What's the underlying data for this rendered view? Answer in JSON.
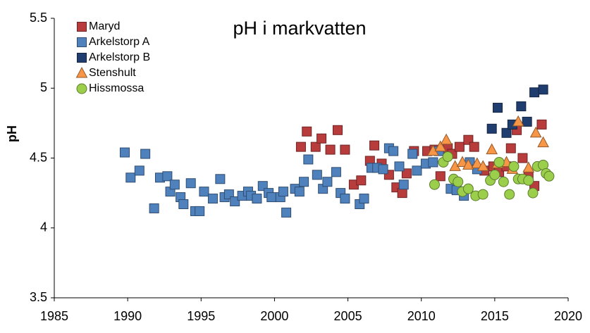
{
  "chart_data": {
    "type": "scatter",
    "title": "pH i markvatten",
    "y_label": "pH",
    "xlim": [
      1985,
      2020
    ],
    "xticks": [
      1985,
      1990,
      1995,
      2000,
      2005,
      2010,
      2015,
      2020
    ],
    "ylim": [
      3.5,
      5.5
    ],
    "yticks": [
      3.5,
      4,
      4.5,
      5,
      5.5
    ],
    "grid": false,
    "legend": "top-left",
    "series": [
      {
        "name": "Maryd",
        "color": "#b83c3c",
        "marker": "square",
        "x": [
          2001.8,
          2002.2,
          2002.8,
          2003.2,
          2003.8,
          2004.3,
          2004.8,
          2005.4,
          2005.9,
          2006.5,
          2006.8,
          2007.3,
          2007.8,
          2008.3,
          2008.7,
          2009.0,
          2009.5,
          2010.4,
          2010.9,
          2011.3,
          2011.8,
          2012.1,
          2012.6,
          2013.2,
          2013.6,
          2014.3,
          2014.9,
          2015.3,
          2015.8,
          2016.1,
          2016.5,
          2016.9,
          2017.3,
          2017.7,
          2018.2
        ],
        "values": [
          4.58,
          4.69,
          4.58,
          4.64,
          4.56,
          4.7,
          4.56,
          4.31,
          4.34,
          4.48,
          4.59,
          4.46,
          4.38,
          4.29,
          4.25,
          4.39,
          4.55,
          4.55,
          4.56,
          4.37,
          4.57,
          4.53,
          4.58,
          4.63,
          4.58,
          4.41,
          4.44,
          4.4,
          4.44,
          4.57,
          4.7,
          4.5,
          4.38,
          4.3,
          4.74
        ]
      },
      {
        "name": "Arkelstorp A",
        "color": "#4f81bd",
        "marker": "square",
        "x": [
          1989.8,
          1990.2,
          1990.8,
          1991.2,
          1991.8,
          1992.2,
          1992.7,
          1992.9,
          1993.2,
          1993.6,
          1993.8,
          1994.3,
          1994.6,
          1994.9,
          1995.2,
          1995.8,
          1996.3,
          1996.6,
          1996.9,
          1997.3,
          1997.8,
          1998.2,
          1998.4,
          1998.8,
          1999.2,
          1999.6,
          1999.8,
          2000.4,
          2000.6,
          2000.8,
          2001.4,
          2001.7,
          2002.0,
          2002.3,
          2002.9,
          2003.3,
          2003.6,
          2004.2,
          2004.5,
          2004.8,
          2005.8,
          2006.1,
          2006.6,
          2007.0,
          2007.4,
          2007.8,
          2008.1,
          2008.5,
          2008.8,
          2009.4,
          2009.7,
          2010.3,
          2010.8,
          2011.2,
          2012.0,
          2012.4,
          2012.9,
          2013.3,
          2013.8
        ],
        "values": [
          4.54,
          4.36,
          4.41,
          4.53,
          4.14,
          4.36,
          4.37,
          4.26,
          4.31,
          4.22,
          4.17,
          4.32,
          4.12,
          4.12,
          4.26,
          4.21,
          4.35,
          4.22,
          4.24,
          4.19,
          4.23,
          4.26,
          4.23,
          4.21,
          4.3,
          4.25,
          4.22,
          4.22,
          4.26,
          4.11,
          4.28,
          4.26,
          4.33,
          4.49,
          4.38,
          4.28,
          4.33,
          4.4,
          4.25,
          4.21,
          4.17,
          4.21,
          4.43,
          4.43,
          4.42,
          4.57,
          4.55,
          4.44,
          4.31,
          4.53,
          4.41,
          4.46,
          4.47,
          4.55,
          4.28,
          4.27,
          4.23,
          4.47,
          4.42
        ]
      },
      {
        "name": "Arkelstorp B",
        "color": "#1f3d6e",
        "marker": "square",
        "x": [
          2014.8,
          2015.2,
          2015.8,
          2016.2,
          2016.8,
          2017.2,
          2017.7,
          2018.3
        ],
        "values": [
          4.71,
          4.86,
          4.68,
          4.74,
          4.87,
          4.76,
          4.97,
          4.99
        ]
      },
      {
        "name": "Stenshult",
        "color": "#f79646",
        "marker": "triangle",
        "x": [
          2010.8,
          2011.3,
          2011.7,
          2012.3,
          2012.8,
          2013.2,
          2013.8,
          2014.2,
          2014.8,
          2015.2,
          2015.8,
          2016.2,
          2016.6,
          2017.3,
          2017.8,
          2018.3
        ],
        "values": [
          4.55,
          4.58,
          4.63,
          4.44,
          4.47,
          4.45,
          4.46,
          4.44,
          4.56,
          4.46,
          4.47,
          4.42,
          4.76,
          4.43,
          4.68,
          4.61
        ]
      },
      {
        "name": "Hissmossa",
        "color": "#9bcf4b",
        "marker": "circle",
        "x": [
          2010.9,
          2011.5,
          2011.8,
          2012.2,
          2012.5,
          2012.8,
          2013.2,
          2013.7,
          2014.2,
          2014.7,
          2015.0,
          2015.3,
          2015.6,
          2016.0,
          2016.3,
          2016.6,
          2016.9,
          2017.3,
          2017.6,
          2017.9,
          2018.3,
          2018.5,
          2018.7
        ],
        "values": [
          4.31,
          4.47,
          4.51,
          4.35,
          4.33,
          4.26,
          4.28,
          4.23,
          4.24,
          4.34,
          4.38,
          4.47,
          4.33,
          4.24,
          4.44,
          4.35,
          4.35,
          4.34,
          4.25,
          4.44,
          4.45,
          4.39,
          4.37
        ]
      }
    ]
  }
}
